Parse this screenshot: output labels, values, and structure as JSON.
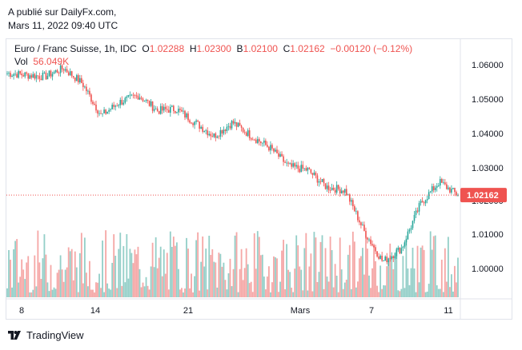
{
  "publication": {
    "line1": "A publié sur DailyFx.com,",
    "line2": "Mars 11, 2022 09:40 UTC"
  },
  "legend": {
    "symbol": "Euro / Franc Suisse, 1h, IDC",
    "o_label": "O",
    "o_value": "1.02288",
    "h_label": "H",
    "h_value": "1.02300",
    "b_label": "B",
    "b_value": "1.02100",
    "c_label": "C",
    "c_value": "1.02162",
    "change": "−0.00120 (−0.12%)",
    "vol_label": "Vol",
    "vol_value": "56.049K"
  },
  "footer": {
    "brand": "TradingView",
    "icon": "tradingview-logo-icon"
  },
  "colors": {
    "up": "#26a69a",
    "down": "#ef5350",
    "up_volume": "#94cfc8",
    "down_volume": "#f5a7a6",
    "price_line": "#ef5350",
    "grid": "#f0f3fa",
    "axis_text": "#131722"
  },
  "chart_data": {
    "type": "candlestick",
    "title": "Euro / Franc Suisse, 1h, IDC",
    "x_tick_labels": [
      "8",
      "14",
      "21",
      "Mars",
      "7",
      "11"
    ],
    "y_tick_labels": [
      "1.06000",
      "1.05000",
      "1.04000",
      "1.03000",
      "1.02000",
      "1.01000",
      "1.00000"
    ],
    "ylim": [
      0.995,
      1.066
    ],
    "last_price": 1.02162,
    "last_price_label": "1.02162",
    "grid": false,
    "price_path": {
      "x": [
        "Feb 7",
        "Feb 8",
        "Feb 9",
        "Feb 10",
        "Feb 11",
        "Feb 14",
        "Feb 15",
        "Feb 16",
        "Feb 17",
        "Feb 18",
        "Feb 21",
        "Feb 22",
        "Feb 23",
        "Feb 24",
        "Feb 25",
        "Feb 28",
        "Mar 1",
        "Mar 2",
        "Mar 3",
        "Mar 4",
        "Mar 7",
        "Mar 8",
        "Mar 9",
        "Mar 10",
        "Mar 11"
      ],
      "y": [
        1.0575,
        1.057,
        1.0565,
        1.059,
        1.0545,
        1.045,
        1.049,
        1.051,
        1.0465,
        1.047,
        1.043,
        1.039,
        1.043,
        1.039,
        1.0355,
        1.03,
        1.029,
        1.024,
        1.023,
        1.011,
        1.002,
        1.006,
        1.019,
        1.0255,
        1.0216
      ]
    },
    "volume": {
      "unit": "K",
      "last_bar": 56.049
    }
  }
}
